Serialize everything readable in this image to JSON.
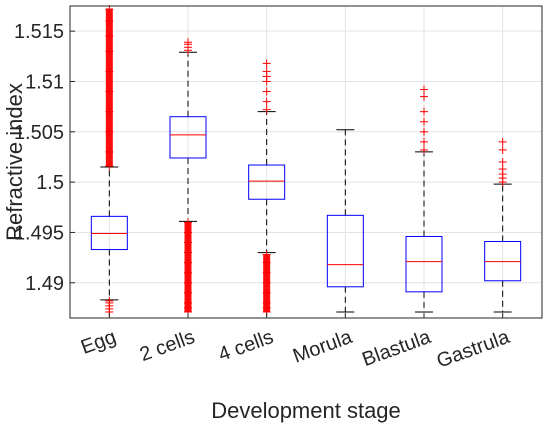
{
  "chart_data": {
    "type": "box",
    "title": "",
    "xlabel": "Development stage",
    "ylabel": "Refractive index",
    "ylim": [
      1.4865,
      1.5175
    ],
    "yticks": [
      1.49,
      1.495,
      1.5,
      1.505,
      1.51,
      1.515
    ],
    "ytick_labels": [
      "1.49",
      "1.495",
      "1.5",
      "1.505",
      "1.51",
      "1.515"
    ],
    "grid": true,
    "categories": [
      "Egg",
      "2 cells",
      "4 cells",
      "Morula",
      "Blastula",
      "Gastrula"
    ],
    "boxes": [
      {
        "whisker_low": 1.4883,
        "q1": 1.4933,
        "median": 1.4949,
        "q3": 1.4966,
        "whisker_high": 1.5015,
        "outliers_low": [
          1.4871,
          1.4874,
          1.4877,
          1.488,
          1.4882
        ],
        "outliers_high": [
          1.5016,
          1.503,
          1.505,
          1.507,
          1.509,
          1.511,
          1.513,
          1.5145,
          1.516,
          1.5172
        ]
      },
      {
        "whisker_low": 1.4961,
        "q1": 1.5024,
        "median": 1.5047,
        "q3": 1.5065,
        "whisker_high": 1.5129,
        "outliers_low": [
          1.4871,
          1.4875,
          1.488,
          1.489,
          1.49,
          1.491,
          1.492,
          1.493,
          1.494,
          1.495,
          1.496
        ],
        "outliers_high": [
          1.5131,
          1.5134,
          1.5137,
          1.5139
        ]
      },
      {
        "whisker_low": 1.493,
        "q1": 1.4983,
        "median": 1.5001,
        "q3": 1.5017,
        "whisker_high": 1.507,
        "outliers_low": [
          1.4871,
          1.4875,
          1.488,
          1.489,
          1.49,
          1.491,
          1.492,
          1.4928
        ],
        "outliers_high": [
          1.5072,
          1.508,
          1.509,
          1.51,
          1.5105,
          1.511,
          1.5118
        ]
      },
      {
        "whisker_low": 1.4871,
        "q1": 1.4896,
        "median": 1.4918,
        "q3": 1.4967,
        "whisker_high": 1.5052,
        "outliers_low": [],
        "outliers_high": []
      },
      {
        "whisker_low": 1.4871,
        "q1": 1.4891,
        "median": 1.4921,
        "q3": 1.4946,
        "whisker_high": 1.503,
        "outliers_low": [],
        "outliers_high": [
          1.5032,
          1.504,
          1.505,
          1.506,
          1.507,
          1.5085,
          1.5092
        ]
      },
      {
        "whisker_low": 1.4871,
        "q1": 1.4902,
        "median": 1.4921,
        "q3": 1.4941,
        "whisker_high": 1.4998,
        "outliers_low": [],
        "outliers_high": [
          1.5,
          1.5004,
          1.5008,
          1.5013,
          1.502,
          1.5032,
          1.504
        ]
      }
    ],
    "colors": {
      "box": "#0000ff",
      "median": "#ff0000",
      "outlier": "#ff0000",
      "whisker": "#000000",
      "grid": "#e3e3e3",
      "axis": "#262626"
    }
  }
}
